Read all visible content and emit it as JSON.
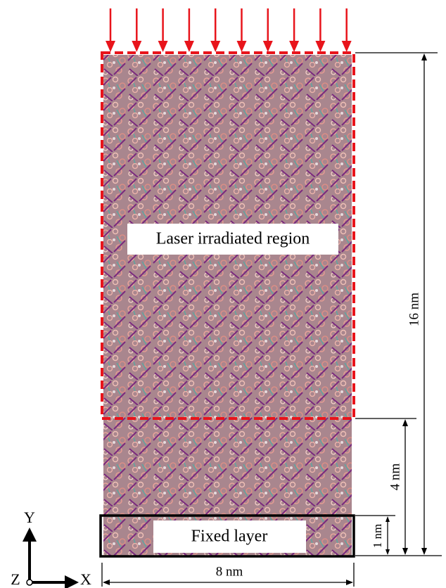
{
  "regions": {
    "laser": "Laser irradiated region",
    "fixed": "Fixed layer"
  },
  "dimensions": {
    "total_height": "16 nm",
    "lower_height": "4 nm",
    "fixed_height": "1 nm",
    "width": "8 nm"
  },
  "axes": {
    "y": "Y",
    "x": "X",
    "z": "Z"
  }
}
